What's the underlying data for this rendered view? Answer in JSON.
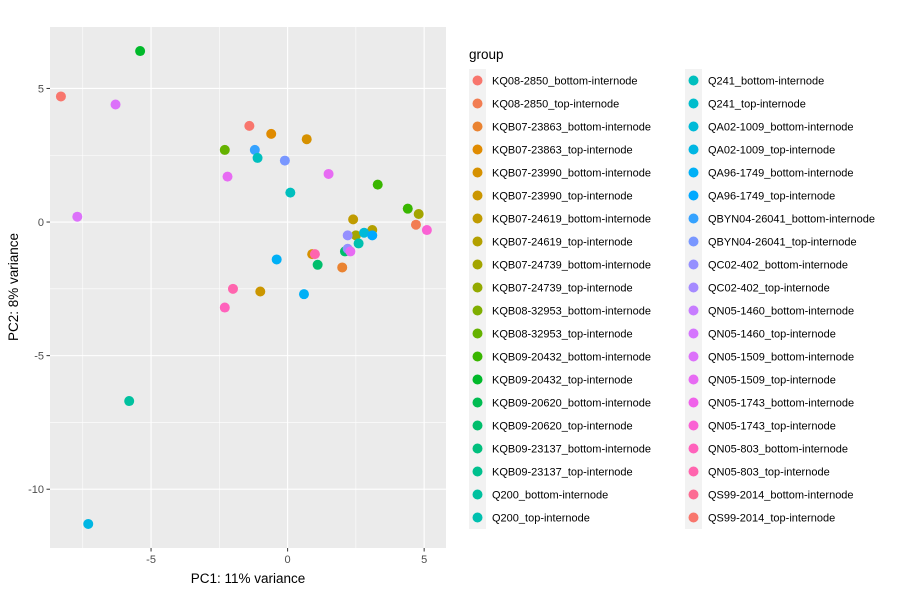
{
  "chart_data": {
    "type": "scatter",
    "xlabel": "PC1: 11% variance",
    "ylabel": "PC2: 8% variance",
    "xlim": [
      -8.7,
      5.8
    ],
    "ylim": [
      -12.2,
      7.3
    ],
    "xticks": [
      -5,
      0,
      5
    ],
    "yticks": [
      -10,
      -5,
      0,
      5
    ],
    "grid": true,
    "legend_title": "group",
    "legend_placement": "right",
    "groups": [
      {
        "name": "KQ08-2850_bottom-internode",
        "color": "#F8766D"
      },
      {
        "name": "KQ08-2850_top-internode",
        "color": "#F27D52"
      },
      {
        "name": "KQB07-23863_bottom-internode",
        "color": "#EA8331"
      },
      {
        "name": "KQB07-23863_top-internode",
        "color": "#E08B00"
      },
      {
        "name": "KQB07-23990_bottom-internode",
        "color": "#D69100"
      },
      {
        "name": "KQB07-23990_top-internode",
        "color": "#CB9600"
      },
      {
        "name": "KQB07-24619_bottom-internode",
        "color": "#C09B00"
      },
      {
        "name": "KQB07-24619_top-internode",
        "color": "#B3A000"
      },
      {
        "name": "KQB07-24739_bottom-internode",
        "color": "#A3A500"
      },
      {
        "name": "KQB07-24739_top-internode",
        "color": "#93AA00"
      },
      {
        "name": "KQB08-32953_bottom-internode",
        "color": "#7FAE00"
      },
      {
        "name": "KQB08-32953_top-internode",
        "color": "#65B200"
      },
      {
        "name": "KQB09-20432_bottom-internode",
        "color": "#39B600"
      },
      {
        "name": "KQB09-20432_top-internode",
        "color": "#00B92A"
      },
      {
        "name": "KQB09-20620_bottom-internode",
        "color": "#00BC51"
      },
      {
        "name": "KQB09-20620_top-internode",
        "color": "#00BE6C"
      },
      {
        "name": "KQB09-23137_bottom-internode",
        "color": "#00BF7D"
      },
      {
        "name": "KQB09-23137_top-internode",
        "color": "#00C08E"
      },
      {
        "name": "Q200_bottom-internode",
        "color": "#00C19F"
      },
      {
        "name": "Q200_top-internode",
        "color": "#00C0AF"
      },
      {
        "name": "Q241_bottom-internode",
        "color": "#00BFBE"
      },
      {
        "name": "Q241_top-internode",
        "color": "#00BDCC"
      },
      {
        "name": "QA02-1009_bottom-internode",
        "color": "#00BAD8"
      },
      {
        "name": "QA02-1009_top-internode",
        "color": "#00B6E3"
      },
      {
        "name": "QA96-1749_bottom-internode",
        "color": "#00B0F6"
      },
      {
        "name": "QA96-1749_top-internode",
        "color": "#00A9FF"
      },
      {
        "name": "QBYN04-26041_bottom-internode",
        "color": "#35A2FF"
      },
      {
        "name": "QBYN04-26041_top-internode",
        "color": "#7997FF"
      },
      {
        "name": "QC02-402_bottom-internode",
        "color": "#9590FF"
      },
      {
        "name": "QC02-402_top-internode",
        "color": "#A58AFF"
      },
      {
        "name": "QN05-1460_bottom-internode",
        "color": "#C77CFF"
      },
      {
        "name": "QN05-1460_top-internode",
        "color": "#D575FE"
      },
      {
        "name": "QN05-1509_bottom-internode",
        "color": "#DC71FA"
      },
      {
        "name": "QN05-1509_top-internode",
        "color": "#E76BF3"
      },
      {
        "name": "QN05-1743_bottom-internode",
        "color": "#F062EA"
      },
      {
        "name": "QN05-1743_top-internode",
        "color": "#FA62D4"
      },
      {
        "name": "QN05-803_bottom-internode",
        "color": "#FF62BC"
      },
      {
        "name": "QN05-803_top-internode",
        "color": "#FF65AE"
      },
      {
        "name": "QS99-2014_bottom-internode",
        "color": "#FC6B93"
      },
      {
        "name": "QS99-2014_top-internode",
        "color": "#F8766D"
      }
    ],
    "points": [
      {
        "x": -8.3,
        "y": 4.7,
        "g": 1
      },
      {
        "x": -5.4,
        "y": 6.4,
        "g": 14
      },
      {
        "x": -6.3,
        "y": 4.4,
        "g": 33
      },
      {
        "x": -7.7,
        "y": 0.2,
        "g": 33
      },
      {
        "x": -2.3,
        "y": 2.7,
        "g": 12
      },
      {
        "x": -2.2,
        "y": 1.7,
        "g": 34
      },
      {
        "x": -1.4,
        "y": 3.6,
        "g": 1
      },
      {
        "x": -0.6,
        "y": 3.3,
        "g": 4
      },
      {
        "x": 0.7,
        "y": 3.1,
        "g": 5
      },
      {
        "x": -1.2,
        "y": 2.7,
        "g": 27
      },
      {
        "x": -1.1,
        "y": 2.4,
        "g": 21
      },
      {
        "x": -0.1,
        "y": 2.3,
        "g": 28
      },
      {
        "x": 0.1,
        "y": 1.1,
        "g": 21
      },
      {
        "x": 1.5,
        "y": 1.8,
        "g": 34
      },
      {
        "x": 3.3,
        "y": 1.4,
        "g": 13
      },
      {
        "x": 4.4,
        "y": 0.5,
        "g": 13
      },
      {
        "x": 4.8,
        "y": 0.3,
        "g": 9
      },
      {
        "x": 2.4,
        "y": 0.1,
        "g": 7
      },
      {
        "x": 3.1,
        "y": -0.3,
        "g": 8
      },
      {
        "x": 4.7,
        "y": -0.1,
        "g": 2
      },
      {
        "x": 5.1,
        "y": -0.3,
        "g": 36
      },
      {
        "x": 2.5,
        "y": -0.5,
        "g": 9
      },
      {
        "x": 2.8,
        "y": -0.4,
        "g": 23
      },
      {
        "x": 3.1,
        "y": -0.5,
        "g": 26
      },
      {
        "x": 2.2,
        "y": -0.5,
        "g": 29
      },
      {
        "x": 2.6,
        "y": -0.8,
        "g": 20
      },
      {
        "x": 2.1,
        "y": -1.1,
        "g": 16
      },
      {
        "x": 2.2,
        "y": -1.0,
        "g": 29
      },
      {
        "x": 2.3,
        "y": -1.1,
        "g": 34
      },
      {
        "x": 0.9,
        "y": -1.2,
        "g": 5
      },
      {
        "x": 1.0,
        "y": -1.2,
        "g": 38
      },
      {
        "x": 2.0,
        "y": -1.7,
        "g": 3
      },
      {
        "x": 1.1,
        "y": -1.6,
        "g": 16
      },
      {
        "x": -0.4,
        "y": -1.4,
        "g": 25
      },
      {
        "x": -2.0,
        "y": -2.5,
        "g": 38
      },
      {
        "x": -1.0,
        "y": -2.6,
        "g": 6
      },
      {
        "x": 0.6,
        "y": -2.7,
        "g": 25
      },
      {
        "x": -2.3,
        "y": -3.2,
        "g": 37
      },
      {
        "x": -5.8,
        "y": -6.7,
        "g": 19
      },
      {
        "x": -7.3,
        "y": -11.3,
        "g": 24
      }
    ]
  }
}
